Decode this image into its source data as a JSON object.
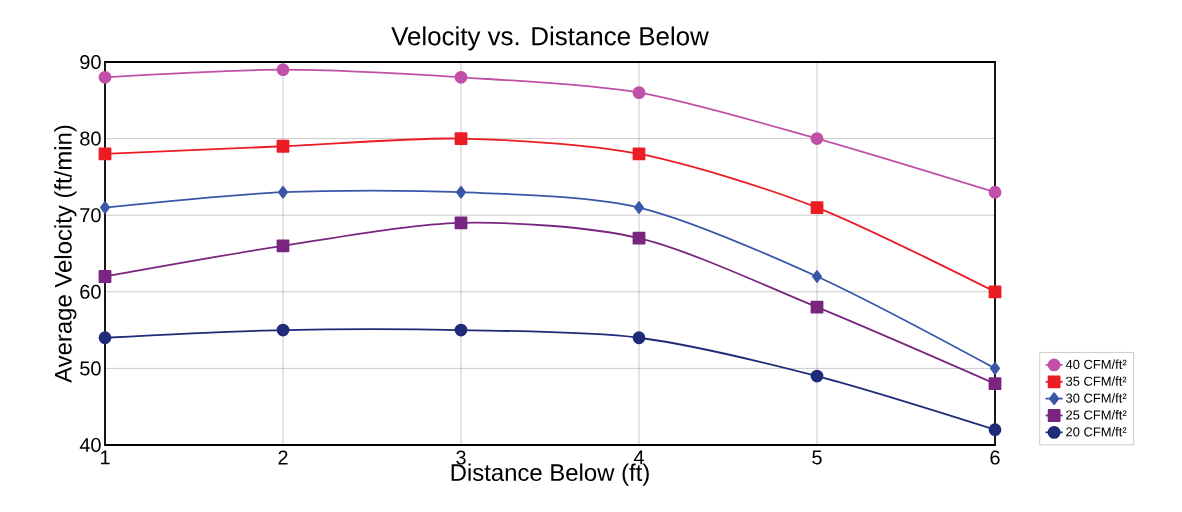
{
  "chart_data": {
    "type": "line",
    "title": "Velocity vs. Distance Below",
    "xlabel": "Distance Below (ft)",
    "ylabel": "Average Velocity (ft/min)",
    "x": [
      1,
      2,
      3,
      4,
      5,
      6
    ],
    "xlim": [
      1,
      6
    ],
    "xticks": [
      1,
      2,
      3,
      4,
      5,
      6
    ],
    "ylim": [
      40,
      90
    ],
    "yticks": [
      40,
      50,
      60,
      70,
      80,
      90
    ],
    "grid": true,
    "legend": "bottom right",
    "series": [
      {
        "name": "40 CFM/ft²",
        "color": "#c050a8",
        "marker": "circle",
        "values": [
          88,
          89,
          88,
          86,
          80,
          73
        ]
      },
      {
        "name": "35 CFM/ft²",
        "color": "#ec1c24",
        "marker": "square",
        "values": [
          78,
          79,
          80,
          78,
          71,
          60
        ]
      },
      {
        "name": "30 CFM/ft²",
        "color": "#3a56a8",
        "marker": "diamond",
        "values": [
          71,
          73,
          73,
          71,
          62,
          50
        ]
      },
      {
        "name": "25 CFM/ft²",
        "color": "#7a2680",
        "marker": "square",
        "values": [
          62,
          66,
          69,
          67,
          58,
          48
        ]
      },
      {
        "name": "20 CFM/ft²",
        "color": "#1f2a78",
        "marker": "circle",
        "values": [
          54,
          55,
          55,
          54,
          49,
          42
        ]
      }
    ]
  }
}
